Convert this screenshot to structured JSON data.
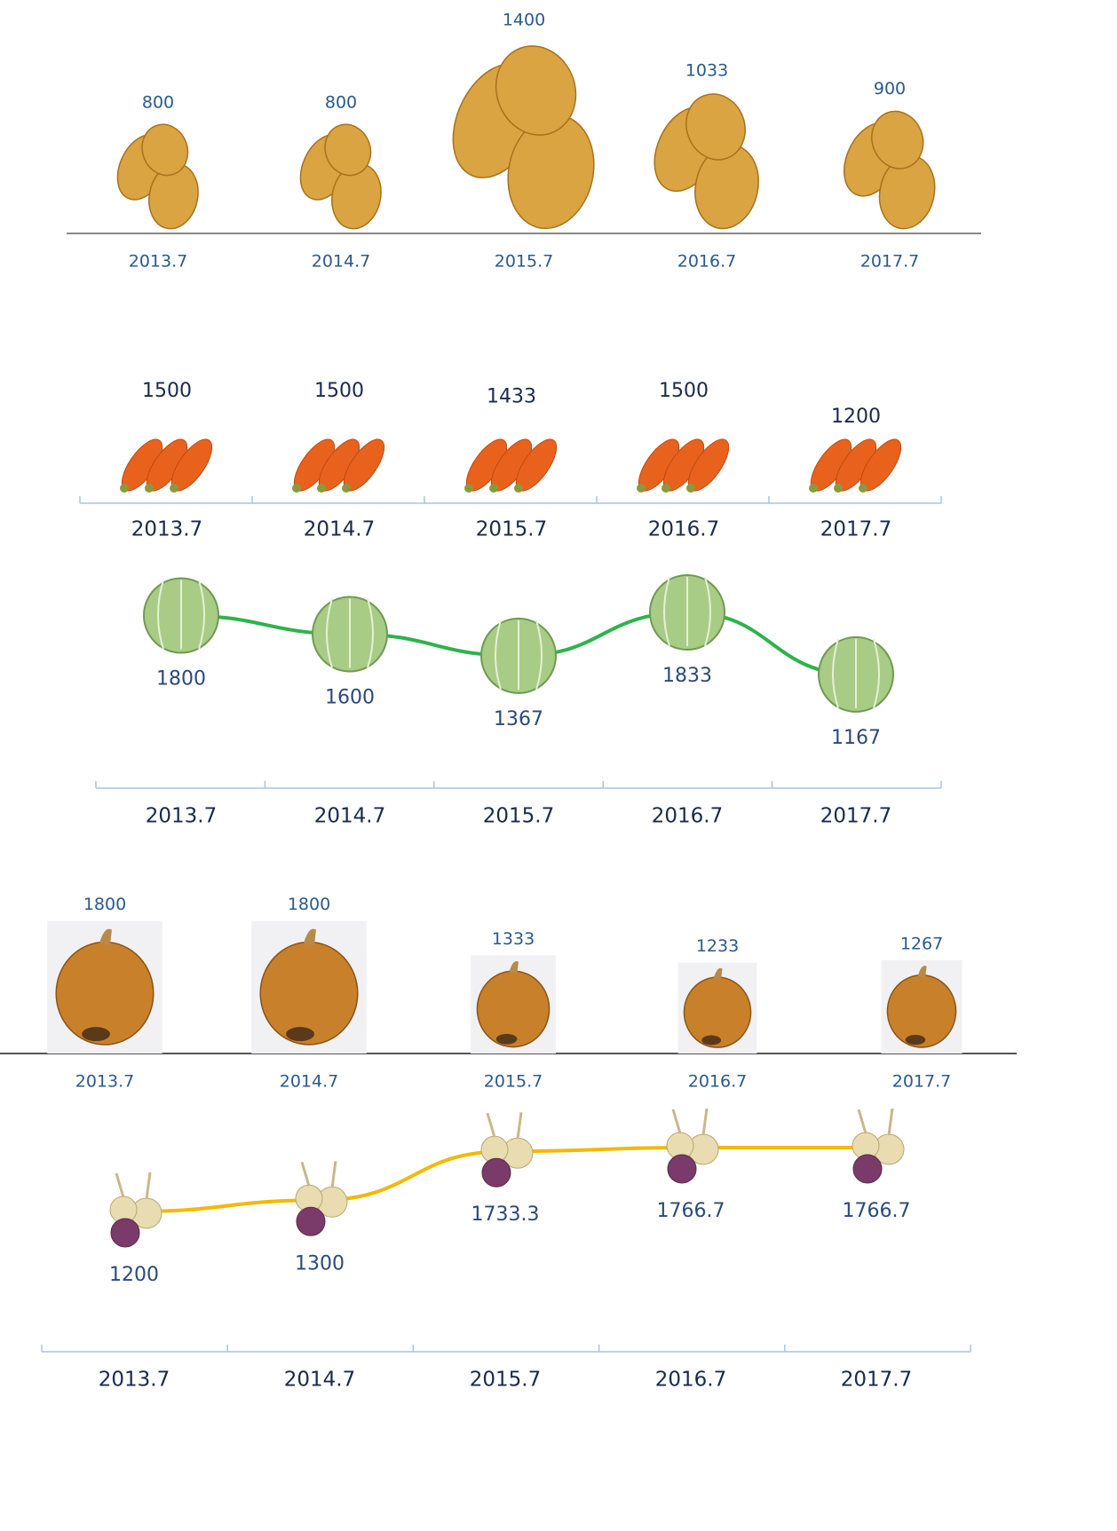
{
  "chart_data": [
    {
      "type": "bar",
      "categories": [
        "2013.7",
        "2014.7",
        "2015.7",
        "2016.7",
        "2017.7"
      ],
      "values": [
        800,
        800,
        1400,
        1033,
        900
      ],
      "color": "#d9a441"
    },
    {
      "type": "bar",
      "categories": [
        "2013.7",
        "2014.7",
        "2015.7",
        "2016.7",
        "2017.7"
      ],
      "values": [
        1500,
        1500,
        1433,
        1500,
        1200
      ],
      "color": "#e8621e"
    },
    {
      "type": "line",
      "categories": [
        "2013.7",
        "2014.7",
        "2015.7",
        "2016.7",
        "2017.7"
      ],
      "values": [
        1800,
        1600,
        1367,
        1833,
        1167
      ],
      "color": "#2db34a"
    },
    {
      "type": "bar",
      "categories": [
        "2013.7",
        "2014.7",
        "2015.7",
        "2016.7",
        "2017.7"
      ],
      "values": [
        1800,
        1800,
        1333,
        1233,
        1267
      ],
      "color": "#c8812a"
    },
    {
      "type": "line",
      "categories": [
        "2013.7",
        "2014.7",
        "2015.7",
        "2016.7",
        "2017.7"
      ],
      "values": [
        1200,
        1300,
        1733.3,
        1766.7,
        1766.7
      ],
      "color": "#f5b800"
    }
  ]
}
